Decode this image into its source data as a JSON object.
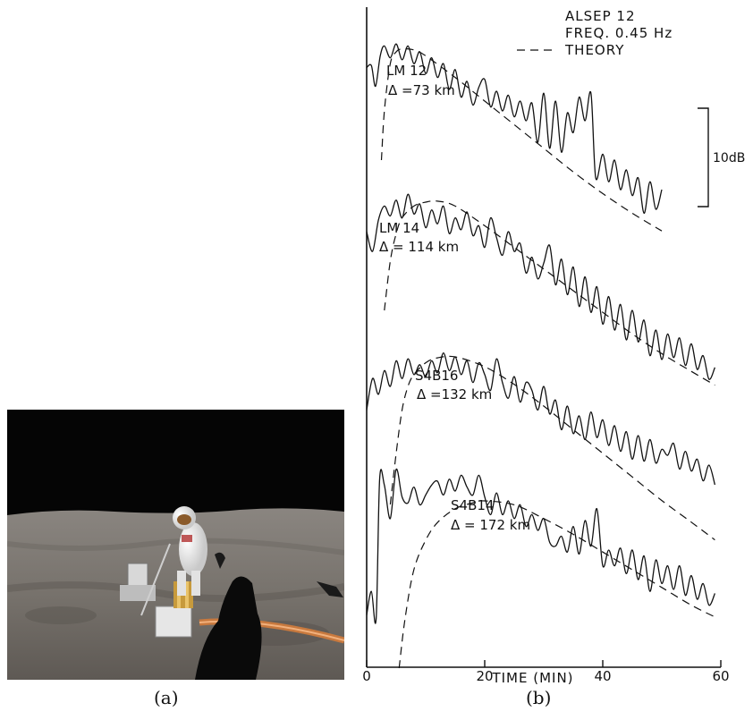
{
  "captions": {
    "a": "(a)",
    "b": "(b)"
  },
  "photo": {
    "description_icon": "astronaut-on-moon-photo"
  },
  "chart_data": {
    "type": "line",
    "title": "ALSEP 12",
    "subtitle": "FREQ. 0.45 Hz",
    "legend": [
      {
        "style": "dashed",
        "label": "THEORY",
        "position": "top-right"
      }
    ],
    "xlabel": "TIME (MIN)",
    "ylabel": "",
    "xlim": [
      0,
      60
    ],
    "xticks": [
      0,
      20,
      40,
      60
    ],
    "scale_bar": "10dB",
    "grid": false,
    "series": [
      {
        "name": "LM 12",
        "distance": "Δ =73 km",
        "observed": [
          [
            0,
            0.4
          ],
          [
            0.8,
            0.6
          ],
          [
            1.5,
            -1.5
          ],
          [
            2.3,
            1.6
          ],
          [
            3,
            2.6
          ],
          [
            4,
            1.4
          ],
          [
            5,
            2.8
          ],
          [
            6,
            1.2
          ],
          [
            7,
            2.6
          ],
          [
            8,
            0.8
          ],
          [
            9,
            2.0
          ],
          [
            10,
            -0.2
          ],
          [
            11,
            1.4
          ],
          [
            12,
            -0.6
          ],
          [
            13,
            0.8
          ],
          [
            14,
            -1.8
          ],
          [
            15,
            0.2
          ],
          [
            16,
            -2.6
          ],
          [
            17,
            -1.0
          ],
          [
            18,
            -3.4
          ],
          [
            19,
            -1.6
          ],
          [
            20,
            -0.8
          ],
          [
            21,
            -3.6
          ],
          [
            22,
            -2.0
          ],
          [
            23,
            -4.0
          ],
          [
            24,
            -2.4
          ],
          [
            25,
            -4.6
          ],
          [
            26,
            -3.0
          ],
          [
            27,
            -5.0
          ],
          [
            28,
            -3.2
          ],
          [
            29,
            -7.2
          ],
          [
            30,
            -2.2
          ],
          [
            31,
            -7.8
          ],
          [
            32,
            -3.0
          ],
          [
            33,
            -8.2
          ],
          [
            34,
            -4.2
          ],
          [
            35,
            -6.2
          ],
          [
            36,
            -2.6
          ],
          [
            37,
            -5.0
          ],
          [
            38,
            -2.2
          ],
          [
            38.8,
            -10.8
          ],
          [
            40,
            -8.4
          ],
          [
            41,
            -11.2
          ],
          [
            42,
            -9.0
          ],
          [
            43,
            -12.0
          ],
          [
            44,
            -10.0
          ],
          [
            45,
            -12.6
          ],
          [
            46,
            -10.8
          ],
          [
            47,
            -14.4
          ],
          [
            48,
            -11.2
          ],
          [
            49,
            -14.0
          ],
          [
            50,
            -12.0
          ]
        ],
        "theory": [
          [
            2.5,
            -9
          ],
          [
            3,
            -4
          ],
          [
            4,
            0.8
          ],
          [
            5,
            2.0
          ],
          [
            6,
            2.3
          ],
          [
            8,
            2.2
          ],
          [
            10,
            1.6
          ],
          [
            15,
            -0.6
          ],
          [
            20,
            -3.0
          ],
          [
            25,
            -5.4
          ],
          [
            30,
            -7.8
          ],
          [
            35,
            -10.2
          ],
          [
            40,
            -12.4
          ],
          [
            45,
            -14.4
          ],
          [
            50,
            -16.2
          ]
        ]
      },
      {
        "name": "LM 14",
        "distance": "Δ = 114 km",
        "observed": [
          [
            0,
            -1.0
          ],
          [
            1,
            -3.0
          ],
          [
            2,
            0.2
          ],
          [
            3,
            1.6
          ],
          [
            4,
            0.6
          ],
          [
            5,
            2.2
          ],
          [
            6,
            0.4
          ],
          [
            7,
            2.8
          ],
          [
            8,
            0.8
          ],
          [
            9,
            1.8
          ],
          [
            10,
            -0.6
          ],
          [
            11,
            1.2
          ],
          [
            12,
            -0.2
          ],
          [
            13,
            1.6
          ],
          [
            14,
            -1.2
          ],
          [
            15,
            0.4
          ],
          [
            16,
            -0.8
          ],
          [
            17,
            1.0
          ],
          [
            18,
            -1.4
          ],
          [
            19,
            -0.4
          ],
          [
            20,
            -2.6
          ],
          [
            21,
            0.4
          ],
          [
            22,
            -1.6
          ],
          [
            23,
            -3.4
          ],
          [
            24,
            -1.0
          ],
          [
            25,
            -3.0
          ],
          [
            26,
            -2.2
          ],
          [
            27,
            -5.2
          ],
          [
            28,
            -3.6
          ],
          [
            29,
            -5.8
          ],
          [
            30,
            -4.2
          ],
          [
            31,
            -2.4
          ],
          [
            32,
            -6.4
          ],
          [
            33,
            -3.8
          ],
          [
            34,
            -7.4
          ],
          [
            35,
            -4.6
          ],
          [
            36,
            -8.6
          ],
          [
            37,
            -5.6
          ],
          [
            38,
            -9.2
          ],
          [
            39,
            -6.6
          ],
          [
            40,
            -10.4
          ],
          [
            41,
            -7.6
          ],
          [
            42,
            -11.0
          ],
          [
            43,
            -8.4
          ],
          [
            44,
            -12.0
          ],
          [
            45,
            -9.0
          ],
          [
            46,
            -12.2
          ],
          [
            47,
            -10.0
          ],
          [
            48,
            -13.6
          ],
          [
            49,
            -11.0
          ],
          [
            50,
            -14.0
          ],
          [
            51,
            -11.4
          ],
          [
            52,
            -13.8
          ],
          [
            53,
            -11.8
          ],
          [
            54,
            -14.6
          ],
          [
            55,
            -12.4
          ],
          [
            56,
            -15.0
          ],
          [
            57,
            -13.6
          ],
          [
            58,
            -16.0
          ],
          [
            59,
            -14.8
          ]
        ],
        "theory": [
          [
            3,
            -9
          ],
          [
            4,
            -4
          ],
          [
            5,
            -1.2
          ],
          [
            6,
            0.4
          ],
          [
            8,
            1.6
          ],
          [
            10,
            2.0
          ],
          [
            12,
            2.1
          ],
          [
            15,
            1.6
          ],
          [
            20,
            -0.4
          ],
          [
            25,
            -2.6
          ],
          [
            30,
            -4.8
          ],
          [
            35,
            -7.0
          ],
          [
            40,
            -9.2
          ],
          [
            45,
            -11.4
          ],
          [
            50,
            -13.4
          ],
          [
            55,
            -15.2
          ],
          [
            59,
            -16.6
          ]
        ]
      },
      {
        "name": "S4B16",
        "distance": "Δ =132 km",
        "observed": [
          [
            0,
            -4.4
          ],
          [
            1,
            -1.2
          ],
          [
            2,
            -2.8
          ],
          [
            3,
            -0.4
          ],
          [
            4,
            -2.0
          ],
          [
            5,
            0.6
          ],
          [
            6,
            -1.2
          ],
          [
            7,
            0.8
          ],
          [
            8,
            -0.8
          ],
          [
            9,
            0.2
          ],
          [
            10,
            -1.0
          ],
          [
            11,
            0.6
          ],
          [
            12,
            -0.6
          ],
          [
            13,
            1.4
          ],
          [
            14,
            -0.4
          ],
          [
            15,
            1.0
          ],
          [
            16,
            -0.8
          ],
          [
            17,
            0.6
          ],
          [
            18,
            -1.6
          ],
          [
            19,
            0.4
          ],
          [
            20,
            -0.8
          ],
          [
            21,
            -2.4
          ],
          [
            22,
            0.8
          ],
          [
            23,
            -1.6
          ],
          [
            24,
            -3.2
          ],
          [
            25,
            -1.0
          ],
          [
            26,
            -3.6
          ],
          [
            27,
            -1.6
          ],
          [
            28,
            -2.4
          ],
          [
            29,
            -4.4
          ],
          [
            30,
            -2.0
          ],
          [
            31,
            -4.8
          ],
          [
            32,
            -3.4
          ],
          [
            33,
            -6.4
          ],
          [
            34,
            -4.0
          ],
          [
            35,
            -6.8
          ],
          [
            36,
            -5.0
          ],
          [
            37,
            -7.4
          ],
          [
            38,
            -4.6
          ],
          [
            39,
            -7.2
          ],
          [
            40,
            -5.4
          ],
          [
            41,
            -8.0
          ],
          [
            42,
            -6.0
          ],
          [
            43,
            -8.6
          ],
          [
            44,
            -6.6
          ],
          [
            45,
            -9.4
          ],
          [
            46,
            -7.0
          ],
          [
            47,
            -9.6
          ],
          [
            48,
            -7.4
          ],
          [
            49,
            -9.8
          ],
          [
            50,
            -8.4
          ],
          [
            51,
            -9.0
          ],
          [
            52,
            -7.8
          ],
          [
            53,
            -10.4
          ],
          [
            54,
            -8.6
          ],
          [
            55,
            -10.6
          ],
          [
            56,
            -9.4
          ],
          [
            57,
            -11.6
          ],
          [
            58,
            -10.0
          ],
          [
            59,
            -12.0
          ]
        ],
        "theory": [
          [
            4,
            -14
          ],
          [
            5,
            -8.8
          ],
          [
            6,
            -4.4
          ],
          [
            7,
            -2.0
          ],
          [
            8,
            -0.8
          ],
          [
            10,
            0.4
          ],
          [
            12,
            0.9
          ],
          [
            15,
            1.0
          ],
          [
            20,
            0.0
          ],
          [
            25,
            -1.8
          ],
          [
            30,
            -4.0
          ],
          [
            35,
            -6.4
          ],
          [
            40,
            -8.8
          ],
          [
            45,
            -11.2
          ],
          [
            50,
            -13.6
          ],
          [
            55,
            -15.8
          ],
          [
            59,
            -17.6
          ]
        ]
      },
      {
        "name": "S4B14",
        "distance": "Δ = 172 km",
        "observed": [
          [
            0,
            -11.6
          ],
          [
            0.8,
            -9.2
          ],
          [
            1.6,
            -12.0
          ],
          [
            2.2,
            2.2
          ],
          [
            3,
            1.6
          ],
          [
            4,
            -1.8
          ],
          [
            5,
            3.2
          ],
          [
            6,
            0.4
          ],
          [
            7,
            -0.2
          ],
          [
            8,
            1.4
          ],
          [
            9,
            -0.4
          ],
          [
            10,
            0.6
          ],
          [
            11,
            1.6
          ],
          [
            12,
            2.0
          ],
          [
            13,
            0.6
          ],
          [
            14,
            2.2
          ],
          [
            15,
            1.0
          ],
          [
            16,
            2.6
          ],
          [
            17,
            1.4
          ],
          [
            18,
            0.6
          ],
          [
            19,
            2.6
          ],
          [
            20,
            0.4
          ],
          [
            21,
            -1.4
          ],
          [
            22,
            0.8
          ],
          [
            23,
            -1.4
          ],
          [
            24,
            0.0
          ],
          [
            25,
            -1.8
          ],
          [
            26,
            -0.4
          ],
          [
            27,
            -2.6
          ],
          [
            28,
            -1.4
          ],
          [
            29,
            -3.0
          ],
          [
            30,
            -1.8
          ],
          [
            31,
            -4.2
          ],
          [
            32,
            -4.6
          ],
          [
            33,
            -3.6
          ],
          [
            34,
            -5.2
          ],
          [
            35,
            -2.6
          ],
          [
            36,
            -5.4
          ],
          [
            37,
            -2.0
          ],
          [
            38,
            -4.6
          ],
          [
            39,
            -0.8
          ],
          [
            40,
            -6.6
          ],
          [
            41,
            -5.0
          ],
          [
            42,
            -6.6
          ],
          [
            43,
            -4.8
          ],
          [
            44,
            -7.4
          ],
          [
            45,
            -5.0
          ],
          [
            46,
            -8.0
          ],
          [
            47,
            -5.6
          ],
          [
            48,
            -9.2
          ],
          [
            49,
            -6.0
          ],
          [
            50,
            -8.4
          ],
          [
            51,
            -6.6
          ],
          [
            52,
            -9.0
          ],
          [
            53,
            -6.6
          ],
          [
            54,
            -9.6
          ],
          [
            55,
            -7.6
          ],
          [
            56,
            -10.0
          ],
          [
            57,
            -8.4
          ],
          [
            58,
            -10.6
          ],
          [
            59,
            -9.4
          ]
        ],
        "theory": [
          [
            5.5,
            -17
          ],
          [
            6.5,
            -12
          ],
          [
            8,
            -7.0
          ],
          [
            10,
            -4.0
          ],
          [
            12,
            -2.2
          ],
          [
            15,
            -0.8
          ],
          [
            18,
            -0.2
          ],
          [
            20,
            0.0
          ],
          [
            25,
            -0.4
          ],
          [
            30,
            -1.8
          ],
          [
            35,
            -3.4
          ],
          [
            40,
            -5.2
          ],
          [
            45,
            -7.0
          ],
          [
            50,
            -8.8
          ],
          [
            55,
            -10.6
          ],
          [
            59,
            -11.8
          ]
        ]
      }
    ]
  }
}
